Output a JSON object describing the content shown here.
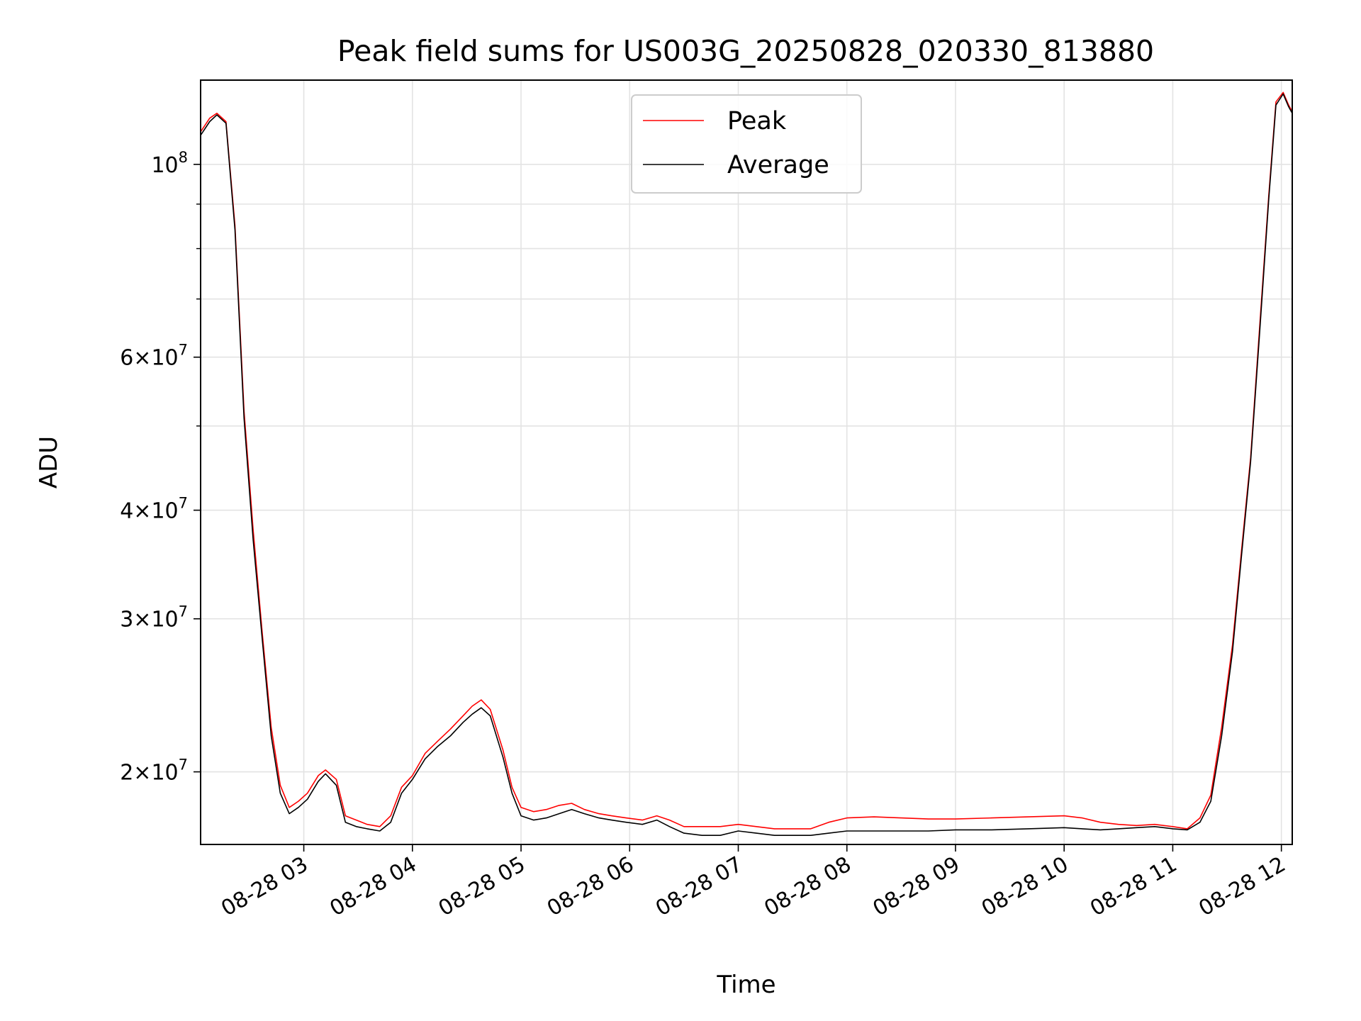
{
  "chart_data": {
    "type": "line",
    "title": "Peak field sums for US003G_20250828_020330_813880",
    "xlabel": "Time",
    "ylabel": "ADU",
    "y_scale": "log",
    "ylim": [
      16500000,
      125000000
    ],
    "xlim": [
      "2025-08-28 02:03",
      "2025-08-28 12:06"
    ],
    "x_tick_labels": [
      "08-28 03",
      "08-28 04",
      "08-28 05",
      "08-28 06",
      "08-28 07",
      "08-28 08",
      "08-28 09",
      "08-28 10",
      "08-28 11",
      "08-28 12"
    ],
    "x_tick_times": [
      "2025-08-28 03:00",
      "2025-08-28 04:00",
      "2025-08-28 05:00",
      "2025-08-28 06:00",
      "2025-08-28 07:00",
      "2025-08-28 08:00",
      "2025-08-28 09:00",
      "2025-08-28 10:00",
      "2025-08-28 11:00",
      "2025-08-28 12:00"
    ],
    "y_ticks": [
      {
        "value": 100000000,
        "mantissa": "",
        "exponent": "8"
      },
      {
        "value": 60000000,
        "mantissa": "6",
        "exponent": "7"
      },
      {
        "value": 40000000,
        "mantissa": "4",
        "exponent": "7"
      },
      {
        "value": 30000000,
        "mantissa": "3",
        "exponent": "7"
      },
      {
        "value": 20000000,
        "mantissa": "2",
        "exponent": "7"
      }
    ],
    "y_minor_ticks": [
      90000000,
      80000000,
      70000000,
      50000000
    ],
    "grid": true,
    "legend_position": "top-center",
    "series": [
      {
        "name": "Peak",
        "color": "#ff0000",
        "points": [
          [
            "2025-08-28 02:03",
            109000000
          ],
          [
            "2025-08-28 02:08",
            113000000
          ],
          [
            "2025-08-28 02:12",
            114500000
          ],
          [
            "2025-08-28 02:17",
            112000000
          ],
          [
            "2025-08-28 02:22",
            85000000
          ],
          [
            "2025-08-28 02:27",
            52000000
          ],
          [
            "2025-08-28 02:32",
            38000000
          ],
          [
            "2025-08-28 02:37",
            29000000
          ],
          [
            "2025-08-28 02:42",
            22500000
          ],
          [
            "2025-08-28 02:47",
            19300000
          ],
          [
            "2025-08-28 02:52",
            18200000
          ],
          [
            "2025-08-28 02:57",
            18500000
          ],
          [
            "2025-08-28 03:02",
            18900000
          ],
          [
            "2025-08-28 03:08",
            19800000
          ],
          [
            "2025-08-28 03:12",
            20100000
          ],
          [
            "2025-08-28 03:18",
            19600000
          ],
          [
            "2025-08-28 03:23",
            17800000
          ],
          [
            "2025-08-28 03:29",
            17600000
          ],
          [
            "2025-08-28 03:35",
            17400000
          ],
          [
            "2025-08-28 03:42",
            17300000
          ],
          [
            "2025-08-28 03:48",
            17800000
          ],
          [
            "2025-08-28 03:54",
            19200000
          ],
          [
            "2025-08-28 04:00",
            19800000
          ],
          [
            "2025-08-28 04:07",
            21000000
          ],
          [
            "2025-08-28 04:14",
            21700000
          ],
          [
            "2025-08-28 04:21",
            22400000
          ],
          [
            "2025-08-28 04:28",
            23200000
          ],
          [
            "2025-08-28 04:33",
            23800000
          ],
          [
            "2025-08-28 04:38",
            24200000
          ],
          [
            "2025-08-28 04:43",
            23600000
          ],
          [
            "2025-08-28 04:50",
            21200000
          ],
          [
            "2025-08-28 04:55",
            19200000
          ],
          [
            "2025-08-28 05:00",
            18200000
          ],
          [
            "2025-08-28 05:07",
            18000000
          ],
          [
            "2025-08-28 05:14",
            18100000
          ],
          [
            "2025-08-28 05:21",
            18300000
          ],
          [
            "2025-08-28 05:28",
            18400000
          ],
          [
            "2025-08-28 05:35",
            18100000
          ],
          [
            "2025-08-28 05:43",
            17900000
          ],
          [
            "2025-08-28 05:50",
            17800000
          ],
          [
            "2025-08-28 05:58",
            17700000
          ],
          [
            "2025-08-28 06:07",
            17600000
          ],
          [
            "2025-08-28 06:15",
            17800000
          ],
          [
            "2025-08-28 06:22",
            17600000
          ],
          [
            "2025-08-28 06:30",
            17300000
          ],
          [
            "2025-08-28 06:40",
            17300000
          ],
          [
            "2025-08-28 06:50",
            17300000
          ],
          [
            "2025-08-28 07:00",
            17400000
          ],
          [
            "2025-08-28 07:10",
            17300000
          ],
          [
            "2025-08-28 07:20",
            17200000
          ],
          [
            "2025-08-28 07:30",
            17200000
          ],
          [
            "2025-08-28 07:40",
            17200000
          ],
          [
            "2025-08-28 07:50",
            17500000
          ],
          [
            "2025-08-28 08:00",
            17700000
          ],
          [
            "2025-08-28 08:15",
            17750000
          ],
          [
            "2025-08-28 08:30",
            17700000
          ],
          [
            "2025-08-28 08:45",
            17650000
          ],
          [
            "2025-08-28 09:00",
            17650000
          ],
          [
            "2025-08-28 09:20",
            17700000
          ],
          [
            "2025-08-28 09:40",
            17750000
          ],
          [
            "2025-08-28 10:00",
            17800000
          ],
          [
            "2025-08-28 10:10",
            17700000
          ],
          [
            "2025-08-28 10:20",
            17500000
          ],
          [
            "2025-08-28 10:30",
            17400000
          ],
          [
            "2025-08-28 10:40",
            17350000
          ],
          [
            "2025-08-28 10:50",
            17400000
          ],
          [
            "2025-08-28 11:00",
            17300000
          ],
          [
            "2025-08-28 11:08",
            17200000
          ],
          [
            "2025-08-28 11:15",
            17700000
          ],
          [
            "2025-08-28 11:21",
            18800000
          ],
          [
            "2025-08-28 11:27",
            22500000
          ],
          [
            "2025-08-28 11:33",
            28000000
          ],
          [
            "2025-08-28 11:38",
            36000000
          ],
          [
            "2025-08-28 11:43",
            46000000
          ],
          [
            "2025-08-28 11:48",
            65000000
          ],
          [
            "2025-08-28 11:53",
            92000000
          ],
          [
            "2025-08-28 11:57",
            118000000
          ],
          [
            "2025-08-28 12:01",
            121000000
          ],
          [
            "2025-08-28 12:04",
            117000000
          ],
          [
            "2025-08-28 12:06",
            115000000
          ]
        ]
      },
      {
        "name": "Average",
        "color": "#000000",
        "points": [
          [
            "2025-08-28 02:03",
            108000000
          ],
          [
            "2025-08-28 02:08",
            112000000
          ],
          [
            "2025-08-28 02:12",
            114000000
          ],
          [
            "2025-08-28 02:17",
            111500000
          ],
          [
            "2025-08-28 02:22",
            84000000
          ],
          [
            "2025-08-28 02:27",
            51000000
          ],
          [
            "2025-08-28 02:32",
            37000000
          ],
          [
            "2025-08-28 02:37",
            28500000
          ],
          [
            "2025-08-28 02:42",
            22000000
          ],
          [
            "2025-08-28 02:47",
            18900000
          ],
          [
            "2025-08-28 02:52",
            17900000
          ],
          [
            "2025-08-28 02:57",
            18200000
          ],
          [
            "2025-08-28 03:02",
            18600000
          ],
          [
            "2025-08-28 03:08",
            19500000
          ],
          [
            "2025-08-28 03:12",
            19900000
          ],
          [
            "2025-08-28 03:18",
            19300000
          ],
          [
            "2025-08-28 03:23",
            17500000
          ],
          [
            "2025-08-28 03:29",
            17300000
          ],
          [
            "2025-08-28 03:35",
            17200000
          ],
          [
            "2025-08-28 03:42",
            17100000
          ],
          [
            "2025-08-28 03:48",
            17500000
          ],
          [
            "2025-08-28 03:54",
            18900000
          ],
          [
            "2025-08-28 04:00",
            19600000
          ],
          [
            "2025-08-28 04:07",
            20700000
          ],
          [
            "2025-08-28 04:14",
            21400000
          ],
          [
            "2025-08-28 04:21",
            22000000
          ],
          [
            "2025-08-28 04:28",
            22800000
          ],
          [
            "2025-08-28 04:33",
            23300000
          ],
          [
            "2025-08-28 04:38",
            23700000
          ],
          [
            "2025-08-28 04:43",
            23200000
          ],
          [
            "2025-08-28 04:50",
            20800000
          ],
          [
            "2025-08-28 04:55",
            18900000
          ],
          [
            "2025-08-28 05:00",
            17800000
          ],
          [
            "2025-08-28 05:07",
            17600000
          ],
          [
            "2025-08-28 05:14",
            17700000
          ],
          [
            "2025-08-28 05:21",
            17900000
          ],
          [
            "2025-08-28 05:28",
            18100000
          ],
          [
            "2025-08-28 05:35",
            17900000
          ],
          [
            "2025-08-28 05:43",
            17700000
          ],
          [
            "2025-08-28 05:50",
            17600000
          ],
          [
            "2025-08-28 05:58",
            17500000
          ],
          [
            "2025-08-28 06:07",
            17400000
          ],
          [
            "2025-08-28 06:15",
            17600000
          ],
          [
            "2025-08-28 06:22",
            17300000
          ],
          [
            "2025-08-28 06:30",
            17000000
          ],
          [
            "2025-08-28 06:40",
            16900000
          ],
          [
            "2025-08-28 06:50",
            16900000
          ],
          [
            "2025-08-28 07:00",
            17100000
          ],
          [
            "2025-08-28 07:10",
            17000000
          ],
          [
            "2025-08-28 07:20",
            16900000
          ],
          [
            "2025-08-28 07:30",
            16900000
          ],
          [
            "2025-08-28 07:40",
            16900000
          ],
          [
            "2025-08-28 07:50",
            17000000
          ],
          [
            "2025-08-28 08:00",
            17100000
          ],
          [
            "2025-08-28 08:15",
            17100000
          ],
          [
            "2025-08-28 08:30",
            17100000
          ],
          [
            "2025-08-28 08:45",
            17100000
          ],
          [
            "2025-08-28 09:00",
            17150000
          ],
          [
            "2025-08-28 09:20",
            17150000
          ],
          [
            "2025-08-28 09:40",
            17200000
          ],
          [
            "2025-08-28 10:00",
            17250000
          ],
          [
            "2025-08-28 10:10",
            17200000
          ],
          [
            "2025-08-28 10:20",
            17150000
          ],
          [
            "2025-08-28 10:30",
            17200000
          ],
          [
            "2025-08-28 10:40",
            17250000
          ],
          [
            "2025-08-28 10:50",
            17300000
          ],
          [
            "2025-08-28 11:00",
            17200000
          ],
          [
            "2025-08-28 11:08",
            17150000
          ],
          [
            "2025-08-28 11:15",
            17500000
          ],
          [
            "2025-08-28 11:21",
            18500000
          ],
          [
            "2025-08-28 11:27",
            22000000
          ],
          [
            "2025-08-28 11:33",
            27500000
          ],
          [
            "2025-08-28 11:38",
            35500000
          ],
          [
            "2025-08-28 11:43",
            45500000
          ],
          [
            "2025-08-28 11:48",
            64000000
          ],
          [
            "2025-08-28 11:53",
            91000000
          ],
          [
            "2025-08-28 11:57",
            117000000
          ],
          [
            "2025-08-28 12:01",
            120500000
          ],
          [
            "2025-08-28 12:04",
            116500000
          ],
          [
            "2025-08-28 12:06",
            114500000
          ]
        ]
      }
    ]
  }
}
